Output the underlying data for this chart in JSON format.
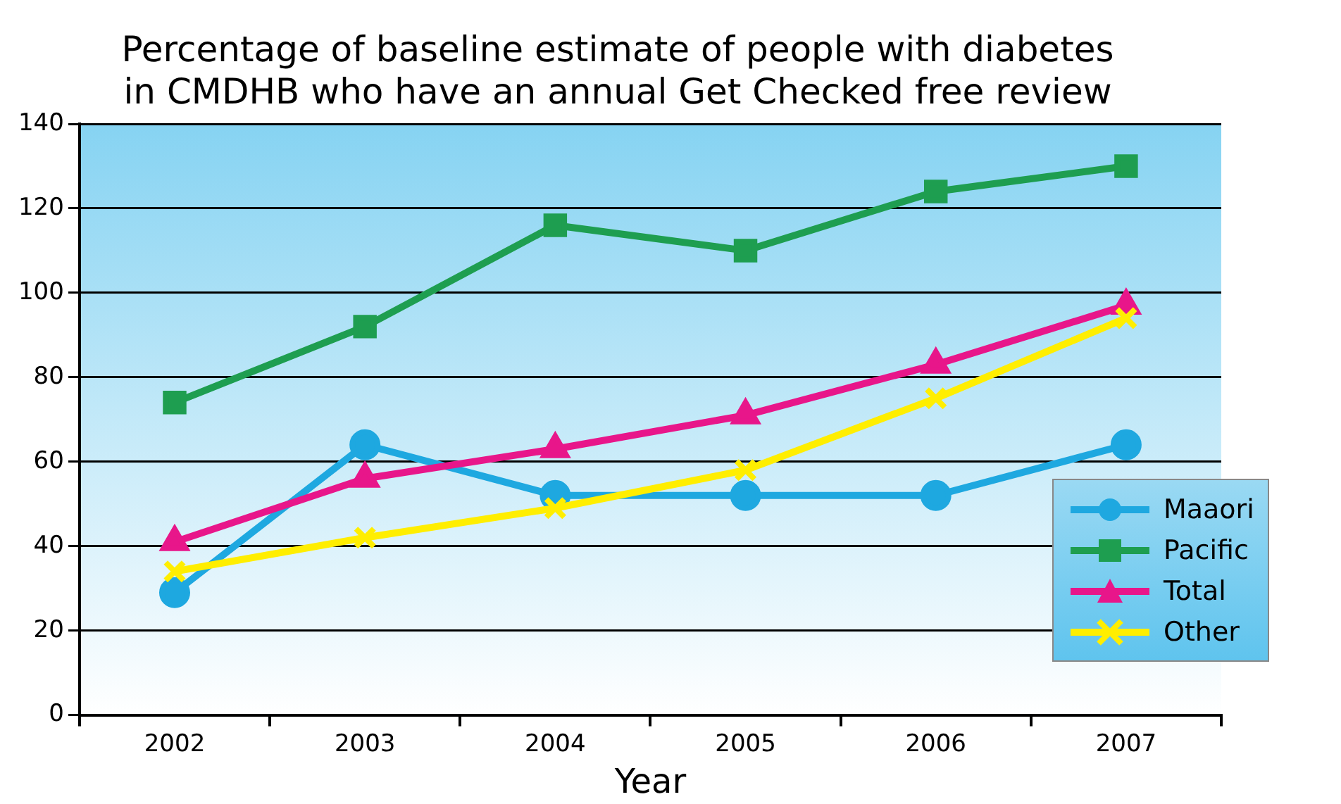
{
  "chart_data": {
    "type": "line",
    "title": "Percentage of baseline estimate of people with diabetes\nin CMDHB who have an annual Get Checked free review",
    "xlabel": "Year",
    "categories": [
      "2002",
      "2003",
      "2004",
      "2005",
      "2006",
      "2007"
    ],
    "series": [
      {
        "name": "Maaori",
        "color": "#1ea8e0",
        "marker": "circle",
        "values": [
          29,
          64,
          52,
          52,
          52,
          64
        ]
      },
      {
        "name": "Pacific",
        "color": "#1e9e50",
        "marker": "square",
        "values": [
          74,
          92,
          116,
          110,
          124,
          130
        ]
      },
      {
        "name": "Total",
        "color": "#e8168a",
        "marker": "triangle",
        "values": [
          41,
          56,
          63,
          71,
          83,
          97
        ]
      },
      {
        "name": "Other",
        "color": "#ffee00",
        "marker": "cross",
        "values": [
          34,
          42,
          49,
          58,
          75,
          94
        ]
      }
    ],
    "ylim": [
      0,
      140
    ],
    "yticks": [
      0,
      20,
      40,
      60,
      80,
      100,
      120,
      140
    ],
    "grid": "y",
    "legend": "bottom right"
  }
}
